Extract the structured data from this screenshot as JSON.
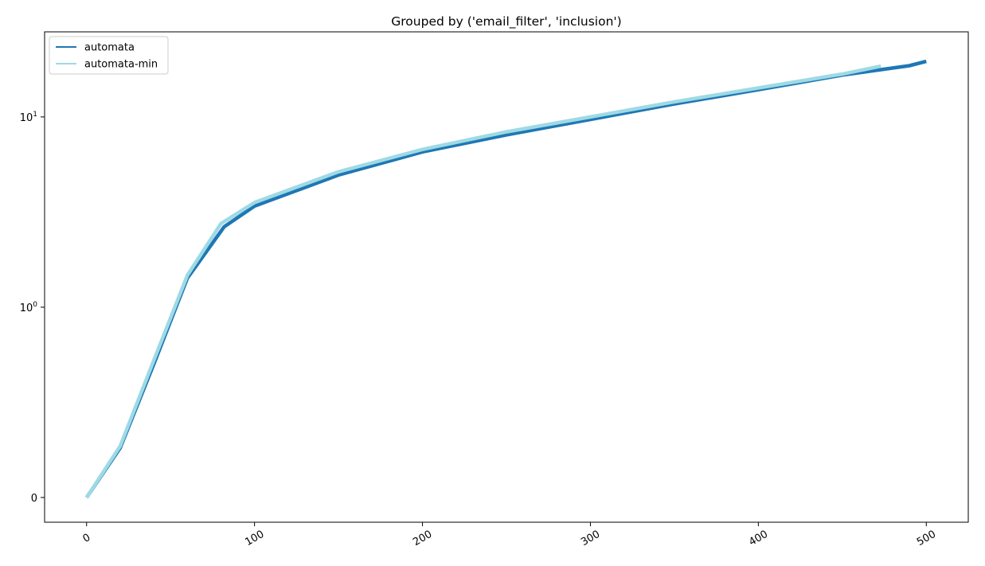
{
  "chart_data": {
    "type": "line",
    "title": "Grouped by ('email_filter', 'inclusion')",
    "xlabel": "",
    "ylabel": "",
    "xlim": [
      -25,
      525
    ],
    "ylim": [
      -0.13,
      28
    ],
    "yscale": "symlog",
    "grid": false,
    "legend_position": "top-left",
    "x_ticks": [
      0,
      100,
      200,
      300,
      400,
      500
    ],
    "x_tick_labels": [
      "0",
      "100",
      "200",
      "300",
      "400",
      "500"
    ],
    "x_tick_rotation": 30,
    "y_ticks": [
      0,
      1,
      10
    ],
    "y_tick_labels": [
      "0",
      "10^0",
      "10^1"
    ],
    "series": [
      {
        "name": "automata",
        "color": "#1f77b4",
        "x": [
          0,
          20,
          40,
          60,
          82,
          100,
          150,
          200,
          250,
          300,
          350,
          400,
          450,
          490,
          500
        ],
        "y": [
          0.0,
          0.26,
          0.7,
          1.42,
          2.65,
          3.4,
          4.95,
          6.55,
          8.05,
          9.7,
          11.7,
          13.9,
          16.6,
          18.6,
          19.6
        ]
      },
      {
        "name": "automata-min",
        "color": "#9edae5",
        "x": [
          0,
          20,
          40,
          60,
          80,
          100,
          150,
          200,
          250,
          300,
          350,
          400,
          450,
          473
        ],
        "y": [
          0.0,
          0.27,
          0.72,
          1.47,
          2.75,
          3.55,
          5.15,
          6.75,
          8.35,
          10.0,
          12.0,
          14.2,
          16.8,
          18.5
        ]
      }
    ]
  }
}
